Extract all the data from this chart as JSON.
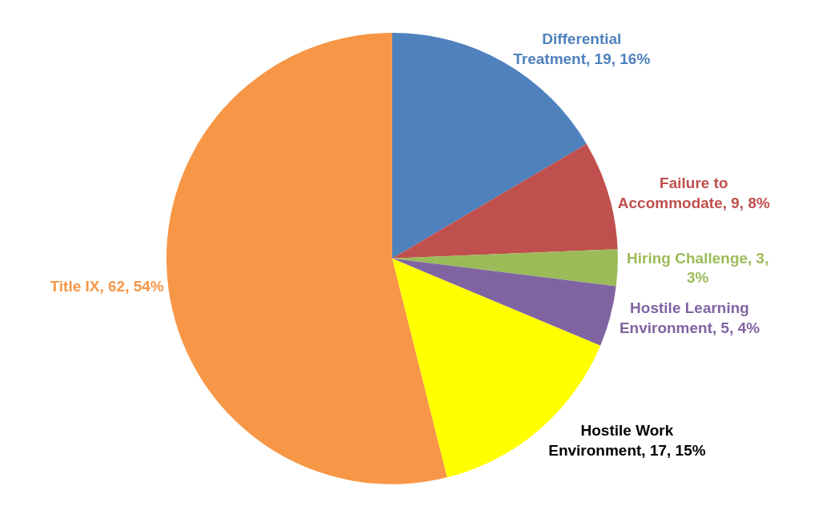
{
  "chart_data": {
    "type": "pie",
    "categories": [
      "Differential Treatment, 19, 16%",
      "Failure to Accommodate, 9, 8%",
      "Hiring Challenge, 3, 3%",
      "Hostile Learning Environment, 5, 4%",
      "Hostile Work Environment, 17, 15%",
      "Title IX, 62, 54%"
    ],
    "values": [
      19,
      9,
      3,
      5,
      17,
      62
    ],
    "colors": [
      "#4f81bd",
      "#c0504d",
      "#9bbb59",
      "#8064a2",
      "#ffff00",
      "#f79646"
    ],
    "legend": false
  }
}
